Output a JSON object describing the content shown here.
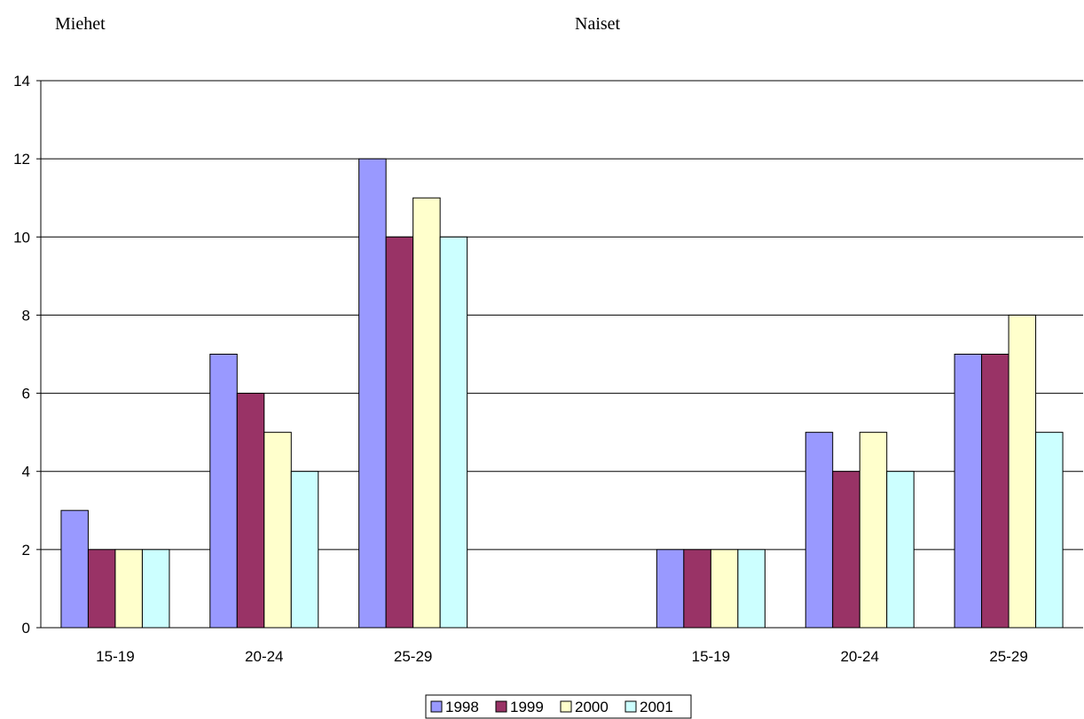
{
  "chart_data": {
    "type": "bar",
    "groups": [
      {
        "title": "Miehet",
        "categories": [
          "15-19",
          "20-24",
          "25-29"
        ]
      },
      {
        "title": "Naiset",
        "categories": [
          "15-19",
          "20-24",
          "25-29"
        ]
      }
    ],
    "series": [
      {
        "name": "1998",
        "color": "#9999ff",
        "values": [
          3,
          7,
          12,
          2,
          5,
          7
        ]
      },
      {
        "name": "1999",
        "color": "#993366",
        "values": [
          2,
          6,
          10,
          2,
          4,
          7
        ]
      },
      {
        "name": "2000",
        "color": "#ffffcc",
        "values": [
          2,
          5,
          11,
          2,
          5,
          8
        ]
      },
      {
        "name": "2001",
        "color": "#ccffff",
        "values": [
          2,
          4,
          10,
          2,
          4,
          5
        ]
      }
    ],
    "ylim": [
      0,
      14
    ],
    "yticks": [
      0,
      2,
      4,
      6,
      8,
      10,
      12,
      14
    ],
    "grid": true,
    "legend_position": "bottom-center"
  }
}
